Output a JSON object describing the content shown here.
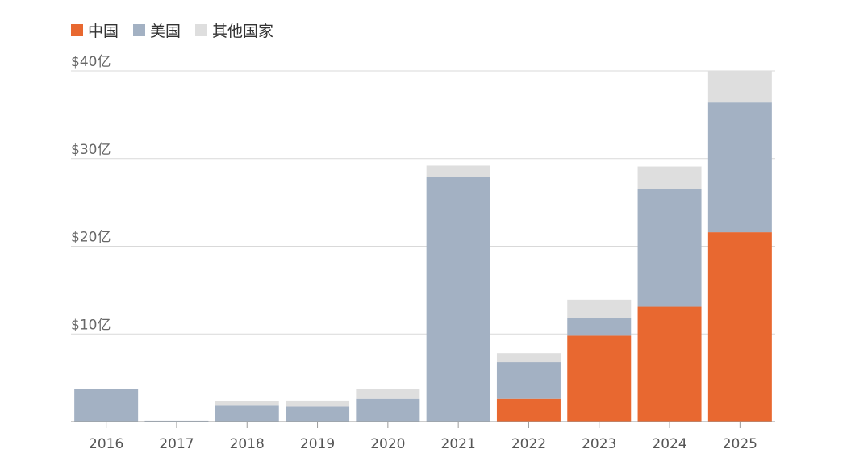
{
  "chart_data": {
    "type": "bar",
    "stacked": true,
    "categories": [
      "2016",
      "2017",
      "2018",
      "2019",
      "2020",
      "2021",
      "2022",
      "2023",
      "2024",
      "2025"
    ],
    "series": [
      {
        "name": "中国",
        "color": "#e86830",
        "values": [
          0,
          0,
          0,
          0,
          0,
          0,
          2.6,
          9.8,
          13.1,
          21.6
        ]
      },
      {
        "name": "美国",
        "color": "#a3b1c3",
        "values": [
          3.7,
          0.1,
          1.9,
          1.7,
          2.6,
          27.9,
          4.2,
          2.0,
          13.4,
          14.8
        ]
      },
      {
        "name": "其他国家",
        "color": "#dedede",
        "values": [
          0,
          0,
          0.4,
          0.7,
          1.1,
          1.3,
          1.0,
          2.1,
          2.6,
          3.6
        ]
      }
    ],
    "yticks": [
      {
        "value": 10,
        "label": "$10亿"
      },
      {
        "value": 20,
        "label": "$20亿"
      },
      {
        "value": 30,
        "label": "$30亿"
      },
      {
        "value": 40,
        "label": "$40亿"
      }
    ],
    "ylim": [
      0,
      40
    ],
    "grid": true,
    "legend_position": "top-left"
  }
}
